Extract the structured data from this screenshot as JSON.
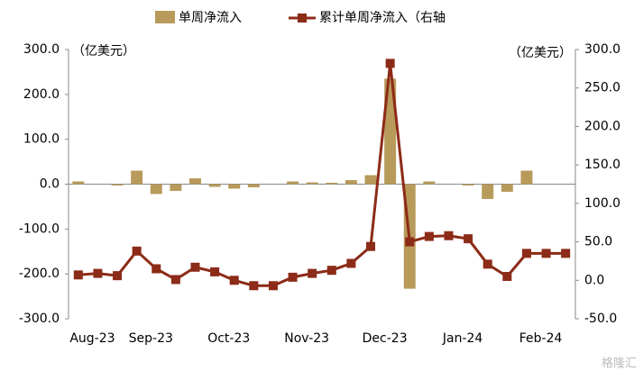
{
  "chart_data": {
    "type": "bar-line",
    "legend": [
      "单周净流入",
      "累计单周净流入（右轴"
    ],
    "y_unit": "（亿美元）",
    "y2_unit": "（亿美元）",
    "watermark": "格隆汇",
    "categories": [
      null,
      "Aug-23",
      null,
      null,
      "Sep-23",
      null,
      null,
      null,
      "Oct-23",
      null,
      null,
      null,
      "Nov-23",
      null,
      null,
      null,
      "Dec-23",
      null,
      null,
      null,
      "Jan-24",
      null,
      null,
      null,
      "Feb-24",
      null
    ],
    "series": [
      {
        "name": "单周净流入",
        "type": "bar",
        "color": "#b89a5b",
        "values": [
          6,
          0,
          -3,
          30,
          -22,
          -15,
          13,
          -6,
          -10,
          -7,
          0,
          6,
          4,
          3,
          9,
          20,
          235,
          -233,
          6,
          0,
          -3,
          -33,
          -17,
          30,
          0,
          0
        ]
      },
      {
        "name": "累计单周净流入（右轴",
        "type": "line",
        "axis": "y2",
        "color": "#8c2b17",
        "values": [
          7,
          9,
          6,
          38,
          15,
          1,
          17,
          11,
          0,
          -7,
          -7,
          4,
          9,
          13,
          22,
          44,
          282,
          50,
          57,
          58,
          54,
          21,
          5,
          35,
          35,
          35
        ]
      }
    ],
    "ylim": [
      -300,
      300
    ],
    "yticks": [
      {
        "value": -300,
        "label": "-300.0"
      },
      {
        "value": -200,
        "label": "-200.0"
      },
      {
        "value": -100,
        "label": "-100.0"
      },
      {
        "value": 0,
        "label": "0.0"
      },
      {
        "value": 100,
        "label": "100.0"
      },
      {
        "value": 200,
        "label": "200.0"
      },
      {
        "value": 300,
        "label": "300.0"
      }
    ],
    "y2lim": [
      -50,
      300
    ],
    "y2ticks": [
      {
        "value": -50,
        "label": "-50.0"
      },
      {
        "value": 0,
        "label": "0.0"
      },
      {
        "value": 50,
        "label": "50.0"
      },
      {
        "value": 100,
        "label": "100.0"
      },
      {
        "value": 150,
        "label": "150.0"
      },
      {
        "value": 200,
        "label": "200.0"
      },
      {
        "value": 250,
        "label": "250.0"
      },
      {
        "value": 300,
        "label": "300.0"
      }
    ]
  }
}
